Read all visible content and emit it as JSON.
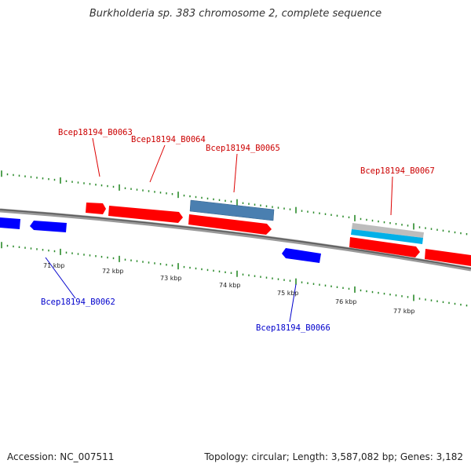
{
  "title": "Burkholderia sp. 383 chromosome 2, complete sequence",
  "footer": {
    "accession": "Accession: NC_007511",
    "topology": "Topology: circular; Length: 3,587,082 bp; Genes: 3,182"
  },
  "colors": {
    "forward_gene": "#ff0000",
    "reverse_gene": "#0000ff",
    "blue_feature": "#4a7fb0",
    "cyan_feature": "#00b0e8",
    "grey_feature": "#b8b8b8",
    "backbone": "#777777",
    "ticks": "#2a8a2a",
    "forward_label": "#cc0000",
    "reverse_label": "#0000cc"
  },
  "scale_labels": [
    "71 kbp",
    "72 kbp",
    "73 kbp",
    "74 kbp",
    "75 kbp",
    "76 kbp",
    "77 kbp"
  ],
  "genes": {
    "forward": [
      "Bcep18194_B0063",
      "Bcep18194_B0064",
      "Bcep18194_B0065",
      "Bcep18194_B0067"
    ],
    "reverse": [
      "Bcep18194_B0062",
      "Bcep18194_B0066"
    ]
  }
}
